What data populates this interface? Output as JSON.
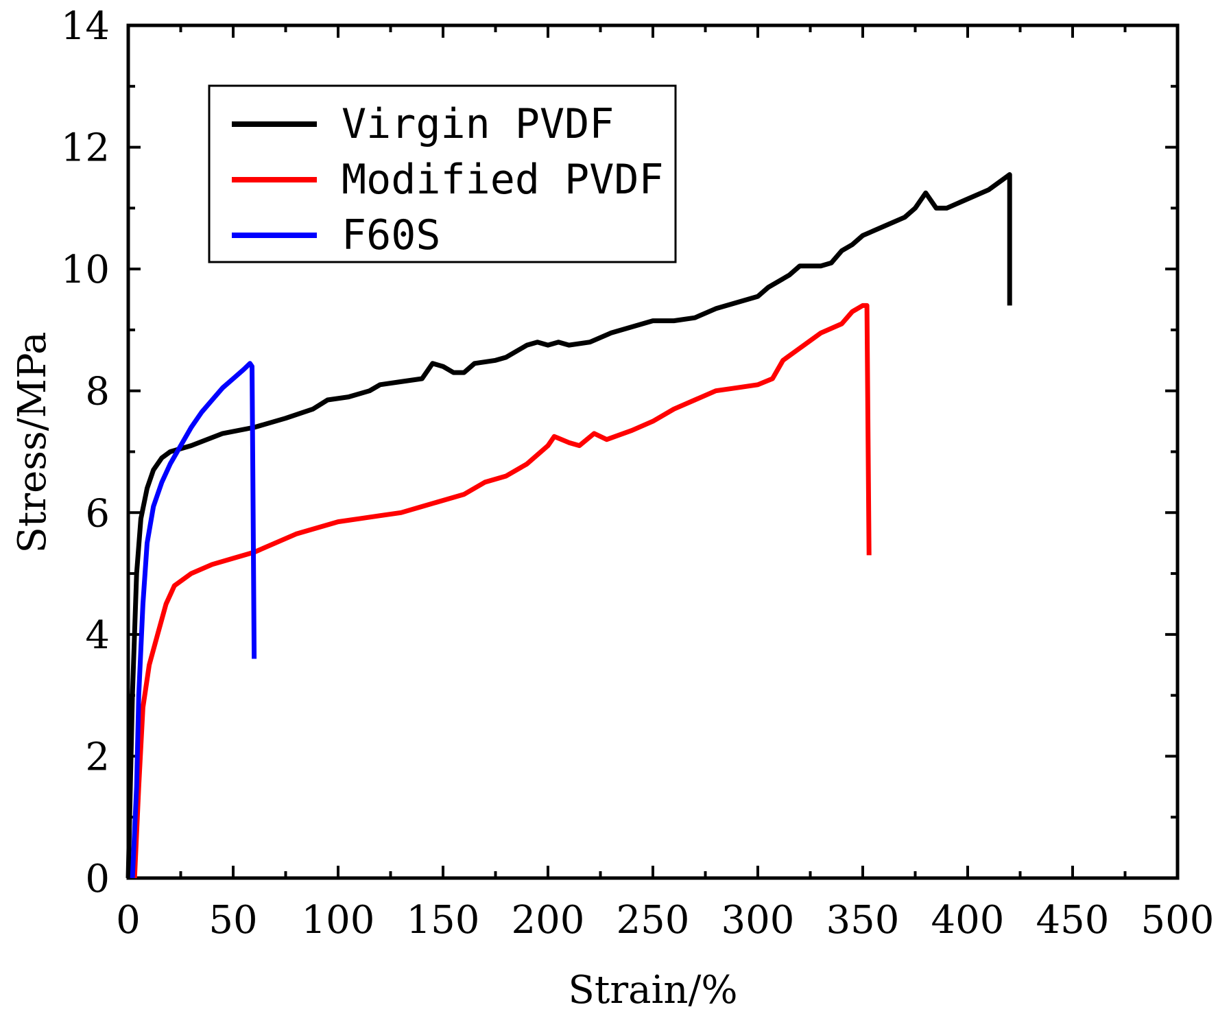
{
  "chart_data": {
    "type": "line",
    "title": "",
    "xlabel": "Strain/%",
    "ylabel": "Stress/MPa",
    "xlim": [
      0,
      500
    ],
    "ylim": [
      0,
      14
    ],
    "xticks": [
      0,
      50,
      100,
      150,
      200,
      250,
      300,
      350,
      400,
      450,
      500
    ],
    "yticks": [
      0,
      2,
      4,
      6,
      8,
      10,
      12,
      14
    ],
    "grid": false,
    "legend": {
      "position": "top-left"
    },
    "series": [
      {
        "name": "Virgin PVDF",
        "color": "#000000",
        "points": [
          [
            0,
            0
          ],
          [
            2,
            3.0
          ],
          [
            4,
            5.0
          ],
          [
            6,
            5.9
          ],
          [
            9,
            6.4
          ],
          [
            12,
            6.7
          ],
          [
            16,
            6.9
          ],
          [
            20,
            7.0
          ],
          [
            30,
            7.1
          ],
          [
            45,
            7.3
          ],
          [
            60,
            7.4
          ],
          [
            75,
            7.55
          ],
          [
            88,
            7.7
          ],
          [
            95,
            7.85
          ],
          [
            105,
            7.9
          ],
          [
            115,
            8.0
          ],
          [
            120,
            8.1
          ],
          [
            130,
            8.15
          ],
          [
            140,
            8.2
          ],
          [
            145,
            8.45
          ],
          [
            150,
            8.4
          ],
          [
            155,
            8.3
          ],
          [
            160,
            8.3
          ],
          [
            165,
            8.45
          ],
          [
            175,
            8.5
          ],
          [
            180,
            8.55
          ],
          [
            190,
            8.75
          ],
          [
            195,
            8.8
          ],
          [
            200,
            8.75
          ],
          [
            205,
            8.8
          ],
          [
            210,
            8.75
          ],
          [
            220,
            8.8
          ],
          [
            230,
            8.95
          ],
          [
            240,
            9.05
          ],
          [
            250,
            9.15
          ],
          [
            260,
            9.15
          ],
          [
            270,
            9.2
          ],
          [
            280,
            9.35
          ],
          [
            290,
            9.45
          ],
          [
            300,
            9.55
          ],
          [
            305,
            9.7
          ],
          [
            315,
            9.9
          ],
          [
            320,
            10.05
          ],
          [
            330,
            10.05
          ],
          [
            335,
            10.1
          ],
          [
            340,
            10.3
          ],
          [
            345,
            10.4
          ],
          [
            350,
            10.55
          ],
          [
            360,
            10.7
          ],
          [
            370,
            10.85
          ],
          [
            375,
            11.0
          ],
          [
            380,
            11.25
          ],
          [
            385,
            11.0
          ],
          [
            390,
            11.0
          ],
          [
            400,
            11.15
          ],
          [
            410,
            11.3
          ],
          [
            420,
            11.55
          ],
          [
            420,
            9.4
          ]
        ]
      },
      {
        "name": "Modified PVDF",
        "color": "#ff0000",
        "points": [
          [
            3,
            0
          ],
          [
            5,
            1.5
          ],
          [
            7,
            2.8
          ],
          [
            10,
            3.5
          ],
          [
            14,
            4.0
          ],
          [
            18,
            4.5
          ],
          [
            22,
            4.8
          ],
          [
            30,
            5.0
          ],
          [
            40,
            5.15
          ],
          [
            50,
            5.25
          ],
          [
            60,
            5.35
          ],
          [
            70,
            5.5
          ],
          [
            80,
            5.65
          ],
          [
            90,
            5.75
          ],
          [
            100,
            5.85
          ],
          [
            110,
            5.9
          ],
          [
            120,
            5.95
          ],
          [
            130,
            6.0
          ],
          [
            140,
            6.1
          ],
          [
            150,
            6.2
          ],
          [
            160,
            6.3
          ],
          [
            170,
            6.5
          ],
          [
            180,
            6.6
          ],
          [
            190,
            6.8
          ],
          [
            200,
            7.1
          ],
          [
            203,
            7.25
          ],
          [
            210,
            7.15
          ],
          [
            215,
            7.1
          ],
          [
            222,
            7.3
          ],
          [
            228,
            7.2
          ],
          [
            240,
            7.35
          ],
          [
            250,
            7.5
          ],
          [
            260,
            7.7
          ],
          [
            270,
            7.85
          ],
          [
            280,
            8.0
          ],
          [
            290,
            8.05
          ],
          [
            300,
            8.1
          ],
          [
            307,
            8.2
          ],
          [
            312,
            8.5
          ],
          [
            320,
            8.7
          ],
          [
            330,
            8.95
          ],
          [
            340,
            9.1
          ],
          [
            345,
            9.3
          ],
          [
            350,
            9.4
          ],
          [
            352,
            9.4
          ],
          [
            353,
            5.3
          ]
        ]
      },
      {
        "name": "F60S",
        "color": "#0000ff",
        "points": [
          [
            2,
            0
          ],
          [
            4,
            1.5
          ],
          [
            5,
            3.0
          ],
          [
            7,
            4.5
          ],
          [
            9,
            5.5
          ],
          [
            12,
            6.1
          ],
          [
            16,
            6.5
          ],
          [
            20,
            6.8
          ],
          [
            25,
            7.1
          ],
          [
            30,
            7.4
          ],
          [
            35,
            7.65
          ],
          [
            40,
            7.85
          ],
          [
            45,
            8.05
          ],
          [
            50,
            8.2
          ],
          [
            55,
            8.35
          ],
          [
            58,
            8.45
          ],
          [
            59,
            8.4
          ],
          [
            59.5,
            6.0
          ],
          [
            60,
            3.6
          ]
        ]
      }
    ]
  }
}
